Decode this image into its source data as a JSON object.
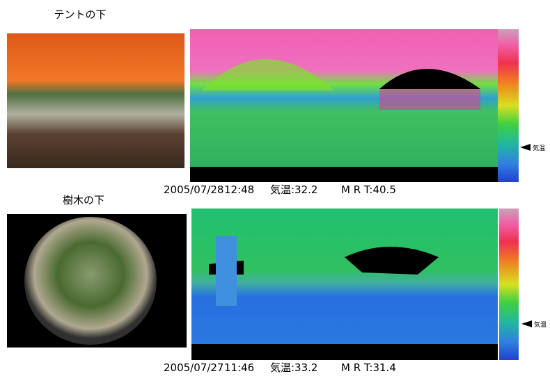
{
  "panels": [
    {
      "label": "テントの下",
      "date": "2005/07/28",
      "time": "12:48",
      "air_temp": "気温:32.2",
      "mrt": "M R T:40.5",
      "marker": "気温"
    },
    {
      "label": "樹木の下",
      "date": "2005/07/27",
      "time": "11:46",
      "air_temp": "気温:33.2",
      "mrt": "M R T:31.4",
      "marker": "気温"
    }
  ]
}
